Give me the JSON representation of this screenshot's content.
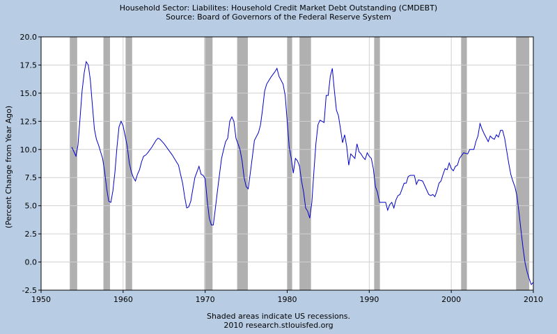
{
  "chart_data": {
    "type": "line",
    "title": "Household Sector: Liabilites: Household Credit Market Debt Outstanding (CMDEBT)",
    "subtitle": "Source: Board of Governors of the Federal Reserve System",
    "ylabel": "(Percent Change from Year Ago)",
    "xlabel": "",
    "footnote": "Shaded areas indicate US recessions.",
    "credit": "2010 research.stlouisfed.org",
    "xlim": [
      1950,
      2010
    ],
    "ylim": [
      -2.5,
      20.0
    ],
    "x_ticks": [
      "1950",
      "1960",
      "1970",
      "1980",
      "1990",
      "2000",
      "2010"
    ],
    "y_ticks": [
      "-2.5",
      "0.0",
      "2.5",
      "5.0",
      "7.5",
      "10.0",
      "12.5",
      "15.0",
      "17.5",
      "20.0"
    ],
    "grid": true,
    "line_color": "#0000cc",
    "recession_color": "#b0b0b0",
    "recessions": [
      [
        1953.5,
        1954.4
      ],
      [
        1957.6,
        1958.4
      ],
      [
        1960.3,
        1961.1
      ],
      [
        1969.9,
        1970.9
      ],
      [
        1973.9,
        1975.2
      ],
      [
        1980.0,
        1980.6
      ],
      [
        1981.5,
        1982.9
      ],
      [
        1990.6,
        1991.3
      ],
      [
        2001.2,
        2001.9
      ],
      [
        2007.9,
        2009.5
      ]
    ],
    "series": [
      {
        "points": [
          [
            1953.75,
            10.2
          ],
          [
            1954.25,
            9.4
          ],
          [
            1954.5,
            10.4
          ],
          [
            1954.75,
            12.8
          ],
          [
            1955.0,
            15.2
          ],
          [
            1955.25,
            16.8
          ],
          [
            1955.5,
            17.8
          ],
          [
            1955.75,
            17.5
          ],
          [
            1956.0,
            16.2
          ],
          [
            1956.25,
            14.0
          ],
          [
            1956.5,
            11.8
          ],
          [
            1956.75,
            10.9
          ],
          [
            1957.0,
            10.4
          ],
          [
            1957.25,
            9.8
          ],
          [
            1957.5,
            9.2
          ],
          [
            1957.75,
            8.0
          ],
          [
            1958.0,
            6.5
          ],
          [
            1958.25,
            5.4
          ],
          [
            1958.5,
            5.3
          ],
          [
            1958.75,
            6.3
          ],
          [
            1959.0,
            8.0
          ],
          [
            1959.25,
            10.2
          ],
          [
            1959.5,
            12.0
          ],
          [
            1959.75,
            12.5
          ],
          [
            1960.0,
            12.1
          ],
          [
            1960.25,
            11.2
          ],
          [
            1960.5,
            10.3
          ],
          [
            1960.75,
            8.8
          ],
          [
            1961.0,
            8.0
          ],
          [
            1961.25,
            7.5
          ],
          [
            1961.5,
            7.2
          ],
          [
            1961.75,
            7.8
          ],
          [
            1962.0,
            8.2
          ],
          [
            1962.25,
            8.9
          ],
          [
            1962.5,
            9.4
          ],
          [
            1962.75,
            9.5
          ],
          [
            1963.0,
            9.7
          ],
          [
            1963.5,
            10.2
          ],
          [
            1964.0,
            10.8
          ],
          [
            1964.25,
            11.0
          ],
          [
            1964.5,
            10.9
          ],
          [
            1965.0,
            10.5
          ],
          [
            1965.5,
            10.0
          ],
          [
            1966.0,
            9.5
          ],
          [
            1966.5,
            8.9
          ],
          [
            1966.75,
            8.6
          ],
          [
            1967.0,
            7.8
          ],
          [
            1967.25,
            7.0
          ],
          [
            1967.5,
            5.8
          ],
          [
            1967.75,
            4.8
          ],
          [
            1968.0,
            4.9
          ],
          [
            1968.25,
            5.4
          ],
          [
            1968.5,
            6.5
          ],
          [
            1968.75,
            7.5
          ],
          [
            1969.0,
            8.0
          ],
          [
            1969.25,
            8.5
          ],
          [
            1969.5,
            7.8
          ],
          [
            1969.75,
            7.7
          ],
          [
            1970.0,
            7.4
          ],
          [
            1970.25,
            5.5
          ],
          [
            1970.5,
            3.9
          ],
          [
            1970.75,
            3.3
          ],
          [
            1971.0,
            3.3
          ],
          [
            1971.25,
            4.8
          ],
          [
            1971.5,
            6.3
          ],
          [
            1971.75,
            7.8
          ],
          [
            1972.0,
            9.2
          ],
          [
            1972.25,
            10.0
          ],
          [
            1972.5,
            10.7
          ],
          [
            1972.75,
            11.0
          ],
          [
            1973.0,
            12.5
          ],
          [
            1973.25,
            12.9
          ],
          [
            1973.5,
            12.5
          ],
          [
            1973.75,
            11.0
          ],
          [
            1974.0,
            10.5
          ],
          [
            1974.25,
            10.0
          ],
          [
            1974.5,
            9.0
          ],
          [
            1974.75,
            7.5
          ],
          [
            1975.0,
            6.7
          ],
          [
            1975.25,
            6.5
          ],
          [
            1975.5,
            7.9
          ],
          [
            1975.75,
            9.3
          ],
          [
            1976.0,
            10.8
          ],
          [
            1976.5,
            11.5
          ],
          [
            1976.75,
            12.2
          ],
          [
            1977.0,
            13.6
          ],
          [
            1977.25,
            15.2
          ],
          [
            1977.5,
            15.8
          ],
          [
            1978.0,
            16.4
          ],
          [
            1978.5,
            16.9
          ],
          [
            1978.75,
            17.2
          ],
          [
            1979.0,
            16.5
          ],
          [
            1979.5,
            15.8
          ],
          [
            1979.75,
            14.8
          ],
          [
            1980.0,
            12.5
          ],
          [
            1980.25,
            10.2
          ],
          [
            1980.5,
            9.2
          ],
          [
            1980.75,
            7.9
          ],
          [
            1981.0,
            9.2
          ],
          [
            1981.25,
            9.0
          ],
          [
            1981.5,
            8.5
          ],
          [
            1981.75,
            7.2
          ],
          [
            1982.0,
            6.2
          ],
          [
            1982.25,
            4.8
          ],
          [
            1982.5,
            4.5
          ],
          [
            1982.75,
            3.9
          ],
          [
            1983.0,
            5.3
          ],
          [
            1983.25,
            8.0
          ],
          [
            1983.5,
            10.5
          ],
          [
            1983.75,
            12.2
          ],
          [
            1984.0,
            12.6
          ],
          [
            1984.5,
            12.4
          ],
          [
            1984.75,
            14.8
          ],
          [
            1985.0,
            14.8
          ],
          [
            1985.25,
            16.5
          ],
          [
            1985.5,
            17.2
          ],
          [
            1985.75,
            15.2
          ],
          [
            1986.0,
            13.5
          ],
          [
            1986.25,
            13.0
          ],
          [
            1986.5,
            11.8
          ],
          [
            1986.75,
            10.6
          ],
          [
            1987.0,
            11.3
          ],
          [
            1987.25,
            10.3
          ],
          [
            1987.5,
            8.6
          ],
          [
            1987.75,
            9.6
          ],
          [
            1988.0,
            9.4
          ],
          [
            1988.25,
            9.2
          ],
          [
            1988.5,
            10.5
          ],
          [
            1988.75,
            9.8
          ],
          [
            1989.0,
            9.6
          ],
          [
            1989.25,
            9.3
          ],
          [
            1989.5,
            9.1
          ],
          [
            1989.75,
            9.7
          ],
          [
            1990.0,
            9.4
          ],
          [
            1990.25,
            9.2
          ],
          [
            1990.5,
            8.3
          ],
          [
            1990.75,
            6.7
          ],
          [
            1991.0,
            6.2
          ],
          [
            1991.25,
            5.3
          ],
          [
            1991.5,
            5.3
          ],
          [
            1992.0,
            5.3
          ],
          [
            1992.25,
            4.6
          ],
          [
            1992.5,
            5.1
          ],
          [
            1992.75,
            5.3
          ],
          [
            1993.0,
            4.8
          ],
          [
            1993.25,
            5.5
          ],
          [
            1993.5,
            5.9
          ],
          [
            1993.75,
            6.0
          ],
          [
            1994.0,
            6.5
          ],
          [
            1994.25,
            7.0
          ],
          [
            1994.5,
            7.0
          ],
          [
            1994.75,
            7.6
          ],
          [
            1995.0,
            7.7
          ],
          [
            1995.5,
            7.7
          ],
          [
            1995.75,
            6.9
          ],
          [
            1996.0,
            7.3
          ],
          [
            1996.5,
            7.2
          ],
          [
            1996.75,
            6.8
          ],
          [
            1997.0,
            6.4
          ],
          [
            1997.25,
            6.0
          ],
          [
            1997.5,
            5.9
          ],
          [
            1997.75,
            6.0
          ],
          [
            1998.0,
            5.8
          ],
          [
            1998.25,
            6.3
          ],
          [
            1998.5,
            7.0
          ],
          [
            1998.75,
            7.2
          ],
          [
            1999.0,
            7.8
          ],
          [
            1999.25,
            8.3
          ],
          [
            1999.5,
            8.2
          ],
          [
            1999.75,
            8.8
          ],
          [
            2000.0,
            8.3
          ],
          [
            2000.25,
            8.1
          ],
          [
            2000.5,
            8.5
          ],
          [
            2000.75,
            8.6
          ],
          [
            2001.0,
            9.2
          ],
          [
            2001.5,
            9.7
          ],
          [
            2002.0,
            9.6
          ],
          [
            2002.25,
            10.0
          ],
          [
            2002.5,
            10.0
          ],
          [
            2002.75,
            10.0
          ],
          [
            2003.0,
            10.7
          ],
          [
            2003.25,
            11.2
          ],
          [
            2003.5,
            12.3
          ],
          [
            2003.75,
            11.8
          ],
          [
            2004.0,
            11.4
          ],
          [
            2004.5,
            10.7
          ],
          [
            2004.75,
            11.2
          ],
          [
            2005.0,
            11.0
          ],
          [
            2005.25,
            10.9
          ],
          [
            2005.5,
            11.3
          ],
          [
            2005.75,
            11.1
          ],
          [
            2006.0,
            11.7
          ],
          [
            2006.25,
            11.7
          ],
          [
            2006.5,
            11.0
          ],
          [
            2006.75,
            9.9
          ],
          [
            2007.0,
            8.8
          ],
          [
            2007.25,
            7.8
          ],
          [
            2007.5,
            7.2
          ],
          [
            2007.75,
            6.7
          ],
          [
            2008.0,
            5.9
          ],
          [
            2008.25,
            4.4
          ],
          [
            2008.5,
            2.8
          ],
          [
            2008.75,
            1.2
          ],
          [
            2009.0,
            -0.1
          ],
          [
            2009.25,
            -0.9
          ],
          [
            2009.5,
            -1.5
          ],
          [
            2009.75,
            -2.0
          ],
          [
            2010.0,
            -1.8
          ]
        ]
      }
    ]
  }
}
